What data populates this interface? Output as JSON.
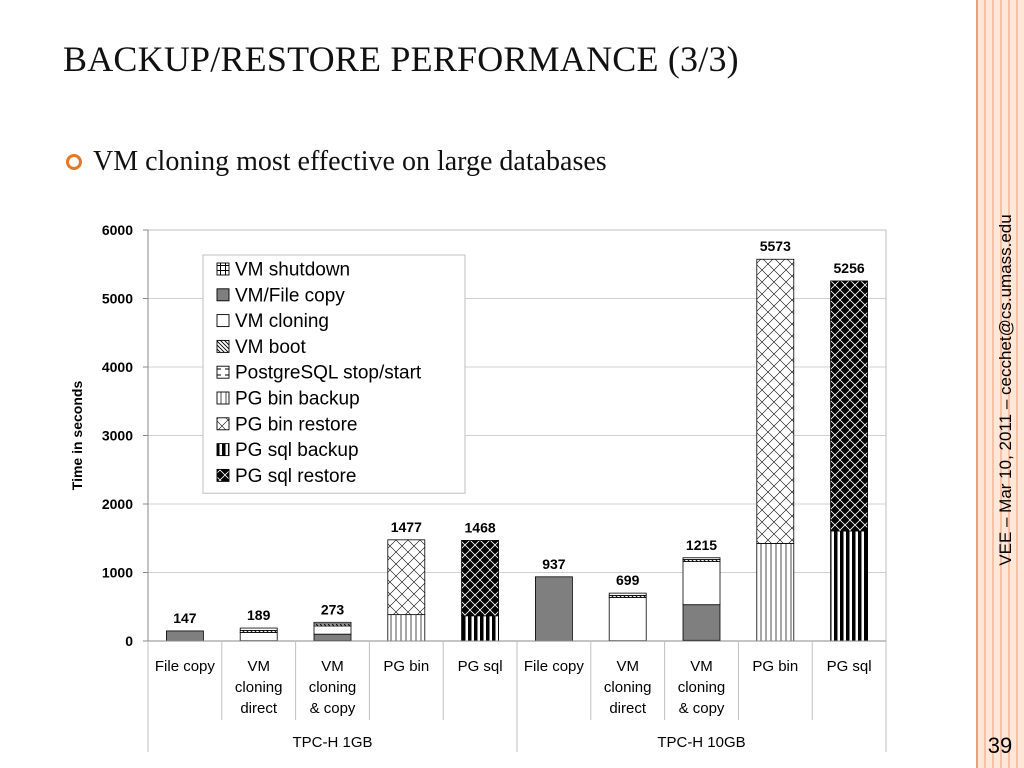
{
  "slide": {
    "title": "BACKUP/RESTORE PERFORMANCE (3/3)",
    "bullet": "VM cloning most effective on large databases",
    "side_text": "VEE – Mar 10, 2011 – cecchet@cs.umass.edu",
    "page_number": "39"
  },
  "chart_data": {
    "type": "bar",
    "stacked": true,
    "ylabel": "Time in seconds",
    "ylim": [
      0,
      6000
    ],
    "y_ticks": [
      "0",
      "1000",
      "2000",
      "3000",
      "4000",
      "5000",
      "6000"
    ],
    "grid": true,
    "legend_position": "inside-top-left",
    "categories": [
      [
        "File copy"
      ],
      [
        "VM",
        "cloning",
        "direct"
      ],
      [
        "VM",
        "cloning",
        "& copy"
      ],
      [
        "PG bin"
      ],
      [
        "PG sql"
      ],
      [
        "File copy"
      ],
      [
        "VM",
        "cloning",
        "direct"
      ],
      [
        "VM",
        "cloning",
        "& copy"
      ],
      [
        "PG bin"
      ],
      [
        "PG sql"
      ]
    ],
    "groups": [
      {
        "label": "TPC-H 1GB",
        "span": 5
      },
      {
        "label": "TPC-H 10GB",
        "span": 5
      }
    ],
    "totals": [
      "147",
      "189",
      "273",
      "1477",
      "1468",
      "937",
      "699",
      "1215",
      "5573",
      "5256"
    ],
    "series": [
      {
        "name": "VM shutdown",
        "pattern": "grid",
        "values": [
          0,
          5,
          5,
          0,
          0,
          0,
          5,
          10,
          0,
          0
        ]
      },
      {
        "name": "VM/File copy",
        "pattern": "solid",
        "values": [
          147,
          0,
          95,
          0,
          0,
          937,
          0,
          520,
          0,
          0
        ]
      },
      {
        "name": "VM cloning",
        "pattern": "white",
        "values": [
          0,
          120,
          120,
          0,
          0,
          0,
          630,
          630,
          0,
          0
        ]
      },
      {
        "name": "VM boot",
        "pattern": "diag",
        "values": [
          0,
          30,
          30,
          0,
          0,
          0,
          30,
          30,
          0,
          0
        ]
      },
      {
        "name": "PostgreSQL stop/start",
        "pattern": "dashed",
        "values": [
          0,
          34,
          23,
          0,
          0,
          0,
          34,
          25,
          0,
          0
        ]
      },
      {
        "name": "PG bin backup",
        "pattern": "vthin",
        "values": [
          0,
          0,
          0,
          385,
          0,
          0,
          0,
          0,
          1425,
          0
        ]
      },
      {
        "name": "PG bin restore",
        "pattern": "crosshatch",
        "values": [
          0,
          0,
          0,
          1092,
          0,
          0,
          0,
          0,
          4148,
          0
        ]
      },
      {
        "name": "PG sql backup",
        "pattern": "vthick",
        "values": [
          0,
          0,
          0,
          0,
          368,
          0,
          0,
          0,
          0,
          1606
        ]
      },
      {
        "name": "PG sql restore",
        "pattern": "darkcross",
        "values": [
          0,
          0,
          0,
          0,
          1100,
          0,
          0,
          0,
          0,
          3650
        ]
      }
    ]
  }
}
